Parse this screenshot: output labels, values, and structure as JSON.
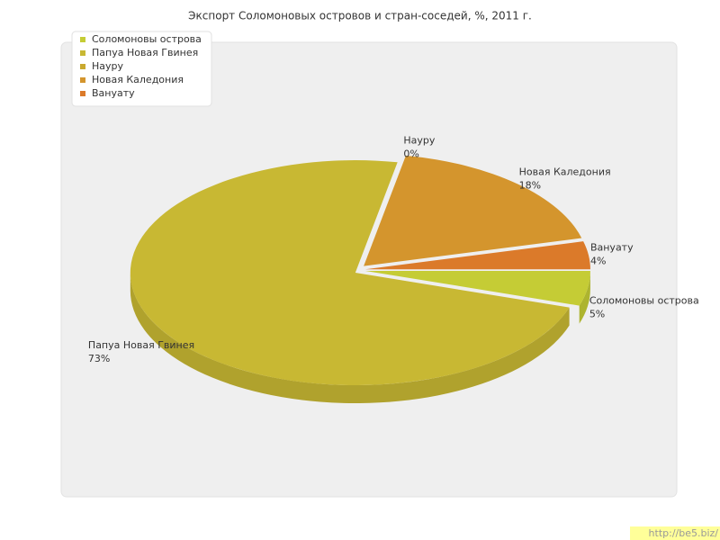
{
  "chart_data": {
    "type": "pie",
    "title": "Экспорт Соломоновых островов и стран-соседей, %, 2011 г.",
    "categories": [
      "Соломоновы острова",
      "Папуа Новая Гвинея",
      "Науру",
      "Новая Каледония",
      "Вануату"
    ],
    "values": [
      5,
      73,
      0,
      18,
      4
    ],
    "value_labels": [
      "5%",
      "73%",
      "0%",
      "18%",
      "4%"
    ],
    "colors": [
      "#c5cc35",
      "#c8b833",
      "#c9a92f",
      "#d4952d",
      "#db7a2a"
    ],
    "legend": "top-left"
  },
  "watermark": "http://be5.biz/"
}
